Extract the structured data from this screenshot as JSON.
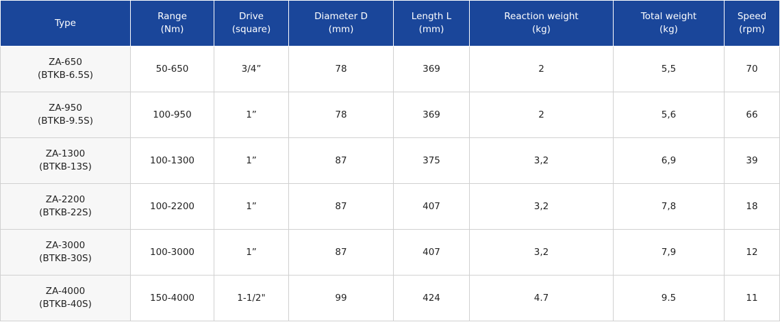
{
  "columns": [
    {
      "line1": "Type",
      "line2": ""
    },
    {
      "line1": "Range",
      "line2": "(Nm)"
    },
    {
      "line1": "Drive",
      "line2": "(square)"
    },
    {
      "line1": "Diameter D",
      "line2": "(mm)"
    },
    {
      "line1": "Length L",
      "line2": "(mm)"
    },
    {
      "line1": "Reaction weight",
      "line2": "(kg)"
    },
    {
      "line1": "Total weight",
      "line2": "(kg)"
    },
    {
      "line1": "Speed",
      "line2": "(rpm)"
    }
  ],
  "rows": [
    {
      "type": "ZA-650",
      "model": "(BTKB-6.5S)",
      "range": "50-650",
      "drive": "3/4”",
      "diameter": "78",
      "length": "369",
      "reaction_weight": "2",
      "total_weight": "5,5",
      "speed": "70"
    },
    {
      "type": "ZA-950",
      "model": "(BTKB-9.5S)",
      "range": "100-950",
      "drive": "1”",
      "diameter": "78",
      "length": "369",
      "reaction_weight": "2",
      "total_weight": "5,6",
      "speed": "66"
    },
    {
      "type": "ZA-1300",
      "model": "(BTKB-13S)",
      "range": "100-1300",
      "drive": "1”",
      "diameter": "87",
      "length": "375",
      "reaction_weight": "3,2",
      "total_weight": "6,9",
      "speed": "39"
    },
    {
      "type": "ZA-2200",
      "model": "(BTKB-22S)",
      "range": "100-2200",
      "drive": "1”",
      "diameter": "87",
      "length": "407",
      "reaction_weight": "3,2",
      "total_weight": "7,8",
      "speed": "18"
    },
    {
      "type": "ZA-3000",
      "model": "(BTKB-30S)",
      "range": "100-3000",
      "drive": "1”",
      "diameter": "87",
      "length": "407",
      "reaction_weight": "3,2",
      "total_weight": "7,9",
      "speed": "12"
    },
    {
      "type": "ZA-4000",
      "model": "(BTKB-40S)",
      "range": "150-4000",
      "drive": "1-1/2\"",
      "diameter": "99",
      "length": "424",
      "reaction_weight": "4.7",
      "total_weight": "9.5",
      "speed": "11"
    }
  ],
  "colors": {
    "header_bg": "#1a469a",
    "header_text": "#ffffff",
    "type_cell_bg": "#f7f7f7",
    "border": "#d0d0d0"
  }
}
